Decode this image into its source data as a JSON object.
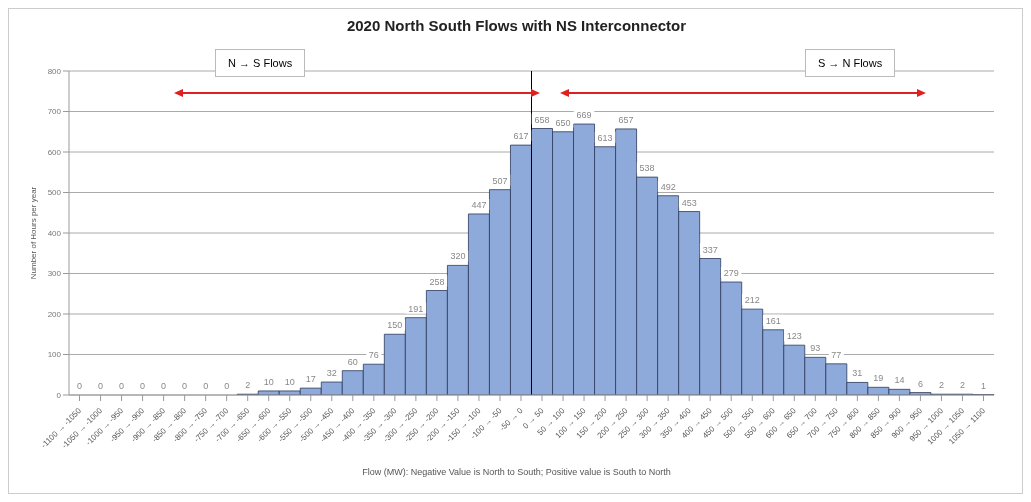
{
  "chart_data": {
    "type": "bar",
    "title": "2020 North South Flows with NS Interconnector",
    "xlabel": "Flow (MW): Negative Value is North to South; Positive value is South to North",
    "ylabel": "Number of Hours per year",
    "annotations": [
      "N → S Flows",
      "S → N Flows"
    ],
    "categories": [
      "-1100 → -1050",
      "-1050 → -1000",
      "-1000 → -950",
      "-950 → -900",
      "-900 → -850",
      "-850 → -800",
      "-800 → -750",
      "-750 → -700",
      "-700 → -650",
      "-650 → -600",
      "-600 → -550",
      "-550 → -500",
      "-500 → -450",
      "-450 → -400",
      "-400 → -350",
      "-350 → -300",
      "-300 → -250",
      "-250 → -200",
      "-200 → -150",
      "-150 → -100",
      "-100 → -50",
      "-50 → 0",
      "0 → 50",
      "50 → 100",
      "100 → 150",
      "150 → 200",
      "200 → 250",
      "250 → 300",
      "300 → 350",
      "350 → 400",
      "400 → 450",
      "450 → 500",
      "500 → 550",
      "550 → 600",
      "600 → 650",
      "650 → 700",
      "700 → 750",
      "750 → 800",
      "800 → 850",
      "850 → 900",
      "900 → 950",
      "950 → 1000",
      "1000 → 1050",
      "1050 → 1100"
    ],
    "values": [
      0,
      0,
      0,
      0,
      0,
      0,
      0,
      0,
      2,
      10,
      10,
      17,
      32,
      60,
      76,
      150,
      191,
      258,
      320,
      447,
      507,
      617,
      658,
      650,
      669,
      613,
      657,
      538,
      492,
      453,
      337,
      279,
      212,
      161,
      123,
      93,
      77,
      31,
      19,
      14,
      6,
      2,
      2,
      1
    ],
    "color": "#8eaadb",
    "ylim": [
      0,
      800
    ],
    "yticks": [
      0,
      100,
      200,
      300,
      400,
      500,
      600,
      700,
      800
    ],
    "grid": "y",
    "data_labels": true,
    "ref_lines": [
      {
        "axis": "x",
        "value": "0 → 50",
        "color": "#000000"
      }
    ]
  }
}
